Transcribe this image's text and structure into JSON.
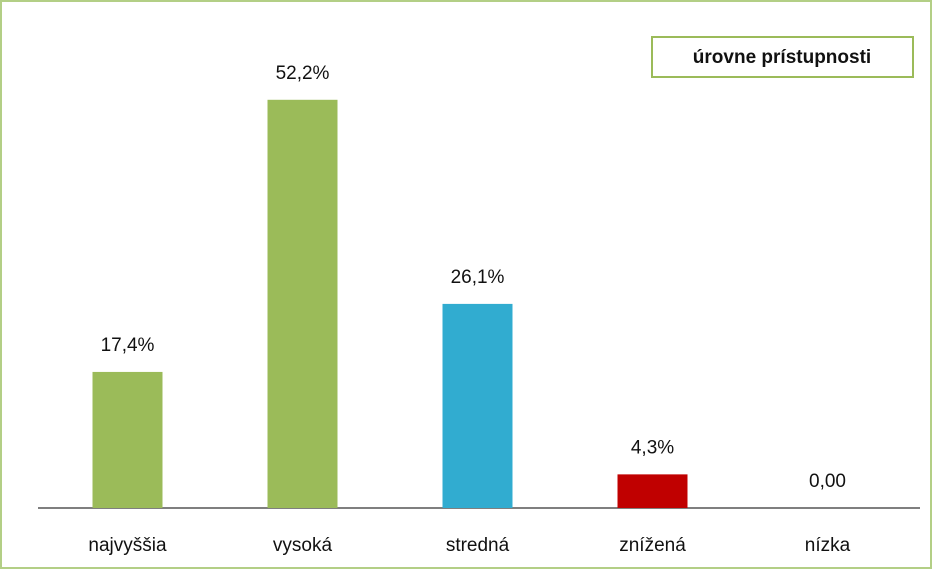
{
  "chart_data": {
    "type": "bar",
    "title": "úrovne prístupnosti",
    "categories": [
      "najvyššia",
      "vysoká",
      "stredná",
      "znížená",
      "nízka"
    ],
    "values": [
      17.4,
      52.2,
      26.1,
      4.3,
      0
    ],
    "value_labels": [
      "17,4%",
      "52,2%",
      "26,1%",
      "4,3%",
      "0,00"
    ],
    "colors": [
      "#9bbb59",
      "#9bbb59",
      "#31acd0",
      "#c00000",
      "#9bbb59"
    ]
  }
}
